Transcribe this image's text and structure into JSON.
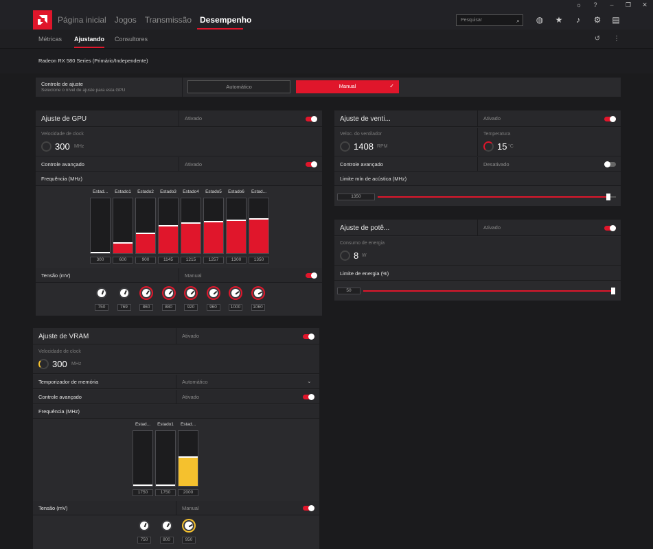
{
  "nav": {
    "items": [
      "Página inicial",
      "Jogos",
      "Transmissão",
      "Desempenho"
    ],
    "active": "Desempenho"
  },
  "search": {
    "placeholder": "Pesquisar"
  },
  "subnav": {
    "tabs": [
      "Métricas",
      "Ajustando",
      "Consultores"
    ],
    "active": "Ajustando"
  },
  "gpu_name": "Radeon RX 580 Series (Primário/Independente)",
  "tuning_control": {
    "label": "Controle de ajuste",
    "sub": "Selecione o nível de ajuste para esta GPU",
    "auto": "Automático",
    "manual": "Manual"
  },
  "gpu_tuning": {
    "title": "Ajuste de GPU",
    "state": "Ativado",
    "clock_caption": "Velocidade de clock",
    "clock_value": "300",
    "clock_unit": "MHz",
    "advanced_label": "Controle avançado",
    "advanced_state": "Ativado",
    "freq_label": "Frequência (MHz)",
    "states": [
      "Estad...",
      "Estado1",
      "Estado2",
      "Estado3",
      "Estado4",
      "Estado5",
      "Estado6",
      "Estad..."
    ],
    "freqs": [
      "300",
      "600",
      "900",
      "1145",
      "1215",
      "1257",
      "1300",
      "1350"
    ],
    "voltage_label": "Tensão (mV)",
    "voltage_state": "Manual",
    "voltages": [
      "750",
      "769",
      "860",
      "880",
      "920",
      "960",
      "1000",
      "1060"
    ]
  },
  "vram_tuning": {
    "title": "Ajuste de VRAM",
    "state": "Ativado",
    "clock_caption": "Velocidade de clock",
    "clock_value": "300",
    "clock_unit": "MHz",
    "mem_timing_label": "Temporizador de memória",
    "mem_timing_value": "Automático",
    "advanced_label": "Controle avançado",
    "advanced_state": "Ativado",
    "freq_label": "Frequência (MHz)",
    "states": [
      "Estad...",
      "Estado1",
      "Estad..."
    ],
    "freqs": [
      "1750",
      "1750",
      "2000"
    ],
    "voltage_label": "Tensão (mV)",
    "voltage_state": "Manual",
    "voltages": [
      "750",
      "800",
      "950"
    ]
  },
  "fan_tuning": {
    "title": "Ajuste de venti...",
    "state": "Ativado",
    "fan_caption": "Veloc. do ventilador",
    "fan_value": "1408",
    "fan_unit": "RPM",
    "temp_caption": "Temperatura",
    "temp_value": "15",
    "temp_unit": "°C",
    "advanced_label": "Controle avançado",
    "advanced_state": "Desativado",
    "min_label": "Limite mín de acústica (MHz)",
    "min_value": "1350"
  },
  "power_tuning": {
    "title": "Ajuste de potê...",
    "state": "Ativado",
    "consumption_caption": "Consumo de energia",
    "consumption_value": "8",
    "consumption_unit": "W",
    "limit_label": "Limite de energia (%)",
    "limit_value": "50"
  },
  "colors": {
    "accent": "#e0162b",
    "vram_accent": "#f5c12e",
    "bg": "#1b1b1d",
    "panel": "#2a2a2d"
  }
}
